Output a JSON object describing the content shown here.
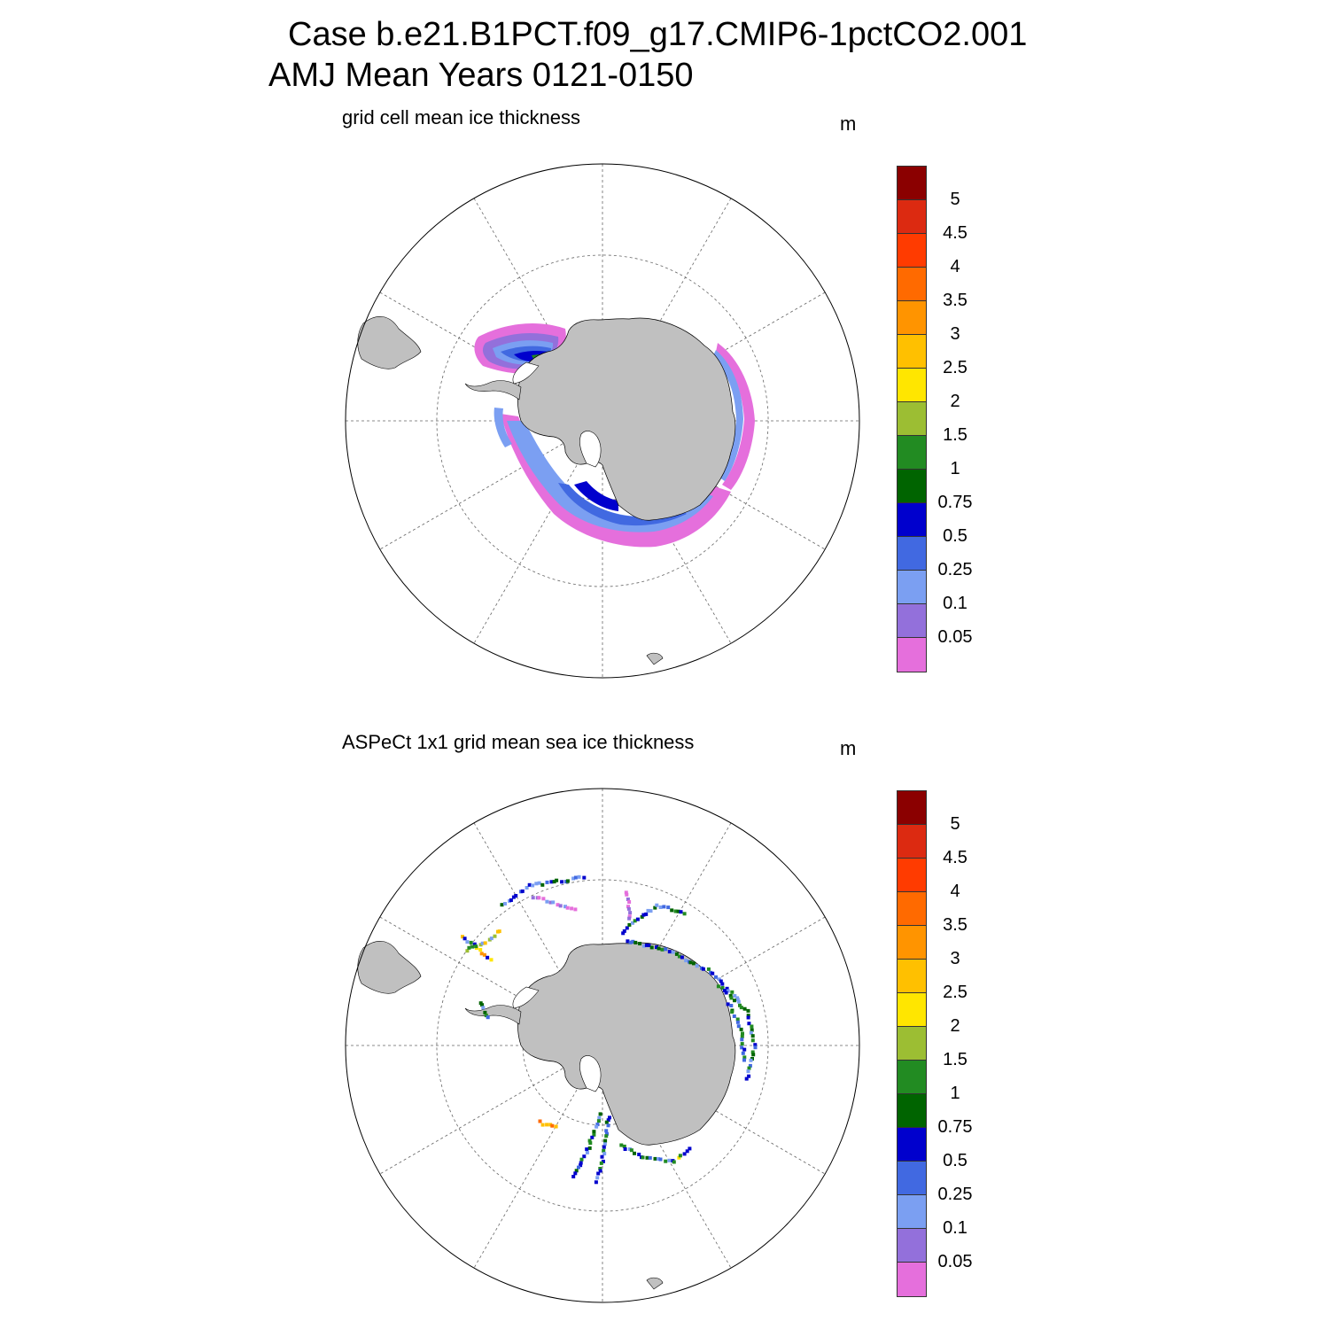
{
  "title": {
    "line1": "Case b.e21.B1PCT.f09_g17.CMIP6-1pctCO2.001",
    "line2": "AMJ Mean   Years 0121-0150"
  },
  "panels": [
    {
      "id": "model",
      "title": "grid cell mean ice thickness",
      "unit": "m"
    },
    {
      "id": "obs",
      "title": "ASPeCt 1x1 grid mean sea ice thickness",
      "unit": "m"
    }
  ],
  "colorbar": {
    "colors": [
      "#8b0000",
      "#dc2a11",
      "#ff3b00",
      "#ff6a00",
      "#ff9400",
      "#ffc000",
      "#ffe600",
      "#9cbe33",
      "#228b22",
      "#006400",
      "#0000cd",
      "#4169e1",
      "#7b9ff2",
      "#9370db",
      "#e56fdc"
    ],
    "labels": [
      "5",
      "4.5",
      "4",
      "3.5",
      "3",
      "2.5",
      "2",
      "1.5",
      "1",
      "0.75",
      "0.5",
      "0.25",
      "0.1",
      "0.05"
    ]
  },
  "map_colors": {
    "land": "#c0c0c0",
    "grid": "#666666",
    "outline": "#000000"
  }
}
